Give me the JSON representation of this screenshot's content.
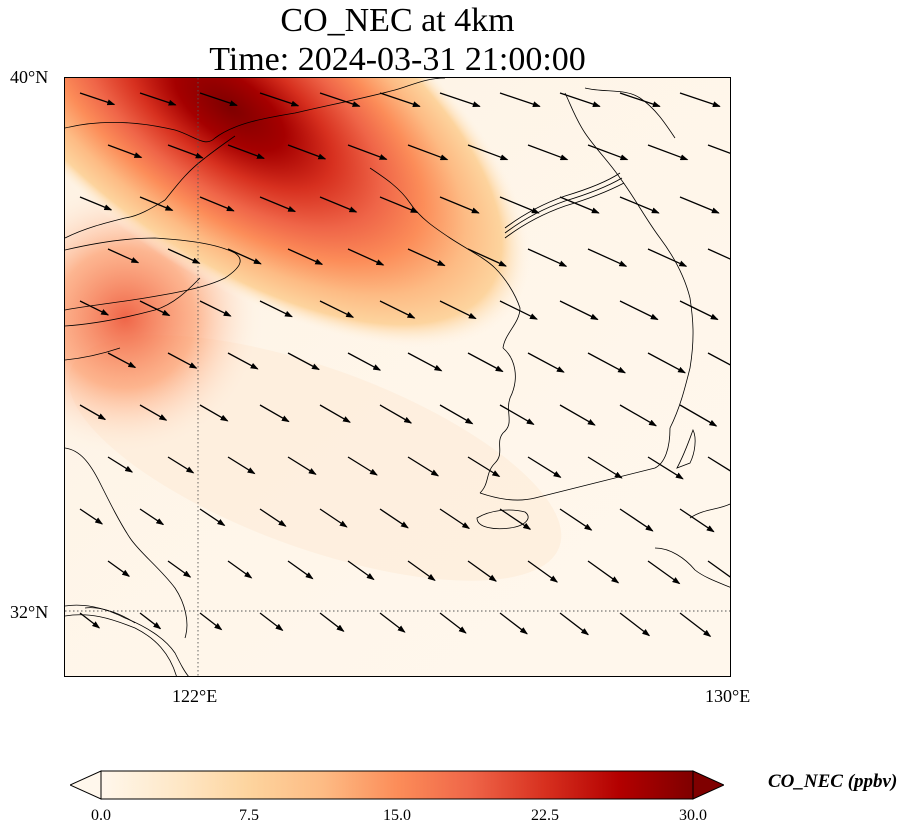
{
  "title": {
    "line1": "CO_NEC at 4km",
    "line2": "Time: 2024-03-31 21:00:00"
  },
  "axes": {
    "lat_ticks": [
      "40°N",
      "32°N"
    ],
    "lon_ticks": [
      "122°E",
      "130°E"
    ],
    "lat_range": [
      31,
      40
    ],
    "lon_range": [
      120,
      130
    ],
    "gridlines": "dotted at 122°E and 32°N"
  },
  "colorbar": {
    "label": "CO_NEC (ppbv)",
    "ticks": [
      "0.0",
      "7.5",
      "15.0",
      "22.5",
      "30.0"
    ],
    "min": 0,
    "max": 30,
    "colormap": "OrRd",
    "extend": "both",
    "colors": [
      "#fff7ec",
      "#fee8c8",
      "#fdd49e",
      "#fdbb84",
      "#fc8d59",
      "#ef6548",
      "#d7301f",
      "#b30000",
      "#7f0000"
    ]
  },
  "field": {
    "plume_max_location": "northwest corner (about 121.5°E, 39.3°N)",
    "plume_peak_value": 30,
    "background_value": 0.5
  },
  "wind": {
    "direction": "from northwest toward southeast",
    "stronger_in": "north and east",
    "weaker_in": "southwest"
  }
}
